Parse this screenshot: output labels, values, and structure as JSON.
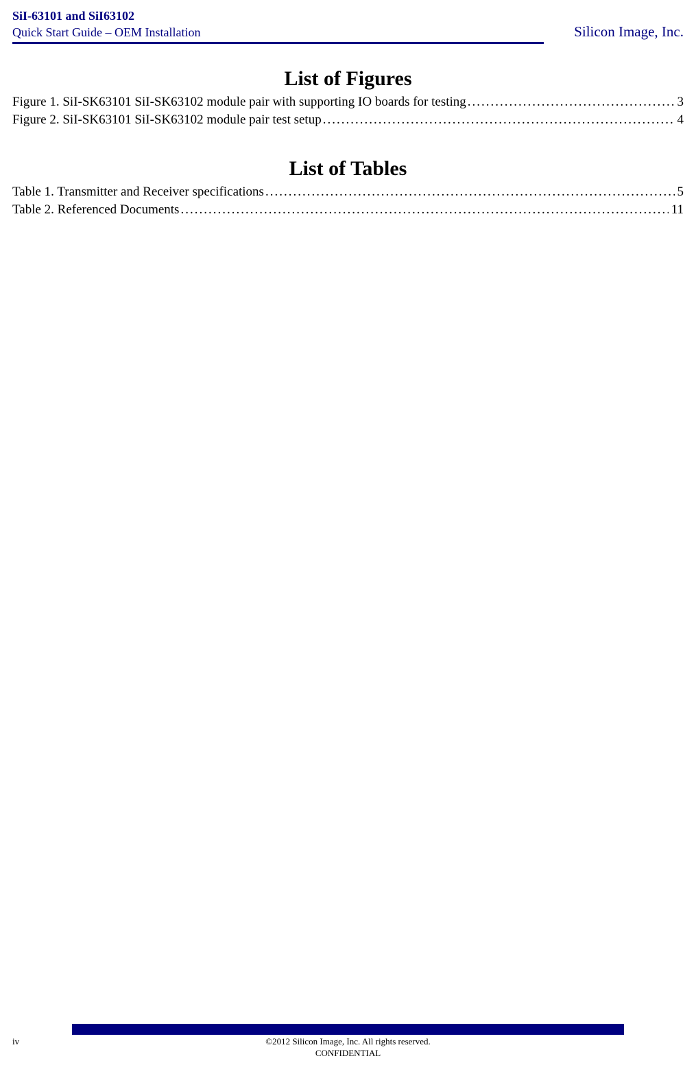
{
  "header": {
    "product_line": "SiI-63101 and SiI63102",
    "subtitle": "Quick Start Guide – OEM Installation",
    "brand": "Silicon Image, Inc."
  },
  "list_of_figures": {
    "title": "List of Figures",
    "entries": [
      {
        "label": "Figure 1. SiI-SK63101 SiI-SK63102 module pair with supporting IO boards for testing",
        "page": "3"
      },
      {
        "label": "Figure 2. SiI-SK63101 SiI-SK63102 module pair test setup",
        "page": "4"
      }
    ]
  },
  "list_of_tables": {
    "title": "List of Tables",
    "entries": [
      {
        "label": "Table 1. Transmitter and Receiver  specifications",
        "page": "5"
      },
      {
        "label": "Table 2. Referenced Documents",
        "page": "11"
      }
    ]
  },
  "footer": {
    "page_number": "iv",
    "copyright": "©2012 Silicon Image, Inc. All rights reserved.",
    "confidential": "CONFIDENTIAL"
  }
}
